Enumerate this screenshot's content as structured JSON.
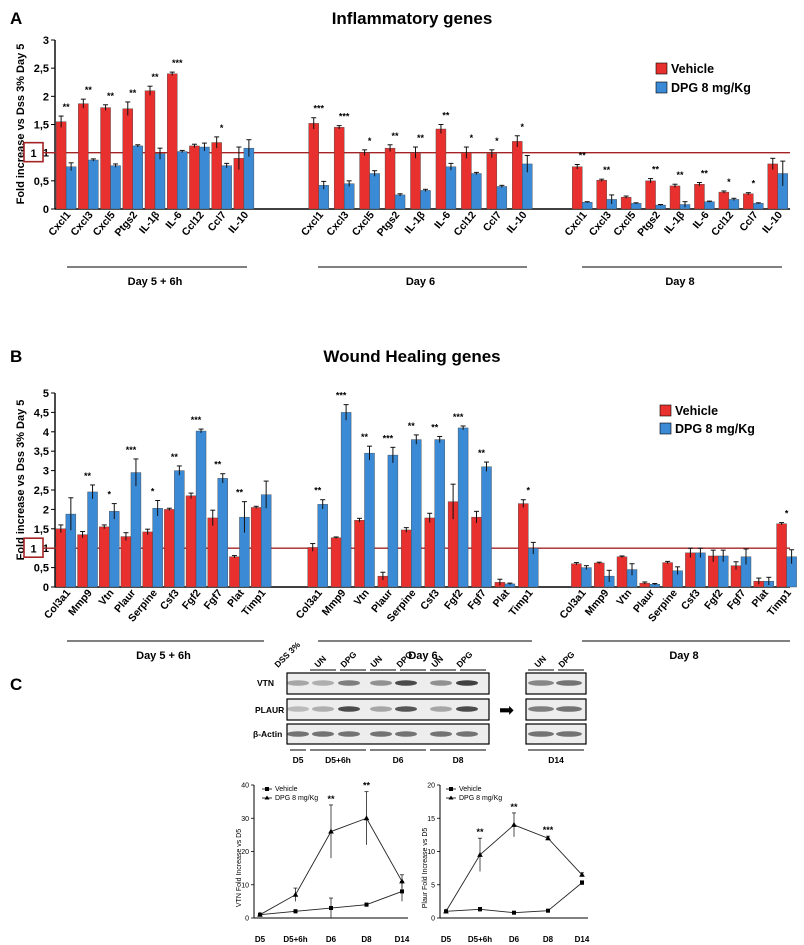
{
  "panel_labels": {
    "a": "A",
    "b": "B",
    "c": "C"
  },
  "legend": {
    "vehicle": "Vehicle",
    "dpg": "DPG 8 mg/Kg",
    "vehicle_color": "#e8302e",
    "dpg_color": "#3a8ad6"
  },
  "chart_data": [
    {
      "id": "inflammatory",
      "type": "bar",
      "title": "Inflammatory genes",
      "ylabel": "Fold increase vs Dss 3% Day 5",
      "ylim": [
        0,
        3
      ],
      "yticks": [
        "0",
        "0,5",
        "1",
        "1,5",
        "2",
        "2,5",
        "3"
      ],
      "reference_line": 1,
      "reference_label": "1",
      "groups": [
        {
          "label": "Day 5 + 6h",
          "categories": [
            "Cxcl1",
            "Cxcl3",
            "Cxcl5",
            "Ptgs2",
            "IL-1β",
            "IL-6",
            "Ccl12",
            "Ccl7",
            "IL-10"
          ],
          "vehicle": [
            1.55,
            1.87,
            1.8,
            1.78,
            2.1,
            2.4,
            1.12,
            1.18,
            0.9
          ],
          "vehicle_err": [
            0.1,
            0.08,
            0.05,
            0.12,
            0.08,
            0.03,
            0.03,
            0.1,
            0.2
          ],
          "dpg": [
            0.75,
            0.87,
            0.77,
            1.12,
            0.98,
            1.02,
            1.1,
            0.77,
            1.08
          ],
          "dpg_err": [
            0.07,
            0.02,
            0.03,
            0.02,
            0.1,
            0.02,
            0.07,
            0.04,
            0.15
          ],
          "sig": [
            "**",
            "**",
            "**",
            "**",
            "**",
            "***",
            "",
            "*",
            ""
          ]
        },
        {
          "label": "Day 6",
          "categories": [
            "Cxcl1",
            "Cxcl3",
            "Cxcl5",
            "Ptgs2",
            "IL-1β",
            "IL-6",
            "Ccl12",
            "Ccl7",
            "IL-10"
          ],
          "vehicle": [
            1.52,
            1.45,
            1.0,
            1.08,
            1.0,
            1.42,
            1.0,
            0.98,
            1.2
          ],
          "vehicle_err": [
            0.1,
            0.03,
            0.05,
            0.06,
            0.1,
            0.08,
            0.1,
            0.07,
            0.1
          ],
          "dpg": [
            0.42,
            0.45,
            0.63,
            0.25,
            0.33,
            0.75,
            0.63,
            0.4,
            0.8
          ],
          "dpg_err": [
            0.07,
            0.05,
            0.05,
            0.02,
            0.02,
            0.06,
            0.02,
            0.02,
            0.15
          ],
          "sig": [
            "***",
            "***",
            "*",
            "**",
            "**",
            "**",
            "*",
            "*",
            "*"
          ]
        },
        {
          "label": "Day 8",
          "categories": [
            "Cxcl1",
            "Cxcl3",
            "Cxcl5",
            "Ptgs2",
            "IL-1β",
            "IL-6",
            "Ccl12",
            "Ccl7",
            "IL-10"
          ],
          "vehicle": [
            0.75,
            0.51,
            0.21,
            0.5,
            0.41,
            0.44,
            0.3,
            0.27,
            0.8
          ],
          "vehicle_err": [
            0.04,
            0.02,
            0.02,
            0.04,
            0.03,
            0.03,
            0.02,
            0.02,
            0.1
          ],
          "dpg": [
            0.12,
            0.17,
            0.1,
            0.07,
            0.08,
            0.13,
            0.17,
            0.1,
            0.63
          ],
          "dpg_err": [
            0.01,
            0.08,
            0.01,
            0.01,
            0.05,
            0.01,
            0.02,
            0.01,
            0.22
          ],
          "sig": [
            "**",
            "**",
            "",
            "**",
            "**",
            "**",
            "*",
            "*",
            ""
          ]
        }
      ]
    },
    {
      "id": "wound_healing",
      "type": "bar",
      "title": "Wound Healing genes",
      "ylabel": "Fold increase vs Dss 3% Day 5",
      "ylim": [
        0,
        5
      ],
      "yticks": [
        "0",
        "0,5",
        "1",
        "1,5",
        "2",
        "2,5",
        "3",
        "3,5",
        "4",
        "4,5",
        "5"
      ],
      "reference_line": 1,
      "reference_label": "1",
      "groups": [
        {
          "label": "Day 5 + 6h",
          "categories": [
            "Col3a1",
            "Mmp9",
            "Vtn",
            "Plaur",
            "Serpine",
            "Csf3",
            "Fgf2",
            "Fgf7",
            "Plat",
            "Timp1"
          ],
          "vehicle": [
            1.5,
            1.35,
            1.55,
            1.3,
            1.42,
            2.0,
            2.35,
            1.78,
            0.78,
            2.05
          ],
          "vehicle_err": [
            0.1,
            0.08,
            0.05,
            0.1,
            0.07,
            0.03,
            0.07,
            0.2,
            0.03,
            0.03
          ],
          "dpg": [
            1.88,
            2.45,
            1.95,
            2.95,
            2.03,
            3.0,
            4.02,
            2.8,
            1.8,
            2.38
          ],
          "dpg_err": [
            0.42,
            0.18,
            0.2,
            0.35,
            0.2,
            0.12,
            0.05,
            0.12,
            0.4,
            0.35
          ],
          "sig": [
            "",
            "**",
            "*",
            "***",
            "*",
            "**",
            "***",
            "**",
            "**",
            ""
          ]
        },
        {
          "label": "Day 6",
          "categories": [
            "Col3a1",
            "Mmp9",
            "Vtn",
            "Plaur",
            "Serpine",
            "Csf3",
            "Fgf2",
            "Fgf7",
            "Plat",
            "Timp1"
          ],
          "vehicle": [
            1.02,
            1.27,
            1.72,
            0.28,
            1.47,
            1.78,
            2.2,
            1.8,
            0.12,
            2.15
          ],
          "vehicle_err": [
            0.1,
            0.02,
            0.05,
            0.1,
            0.06,
            0.12,
            0.45,
            0.15,
            0.08,
            0.1
          ],
          "dpg": [
            2.13,
            4.5,
            3.45,
            3.4,
            3.8,
            3.8,
            4.1,
            3.1,
            0.08,
            1.0
          ],
          "dpg_err": [
            0.12,
            0.2,
            0.18,
            0.2,
            0.12,
            0.08,
            0.05,
            0.12,
            0.02,
            0.15
          ],
          "sig": [
            "**",
            "***",
            "**",
            "***",
            "**",
            "**",
            "***",
            "**",
            "",
            "*"
          ]
        },
        {
          "label": "Day 8",
          "categories": [
            "Col3a1",
            "Mmp9",
            "Vtn",
            "Plaur",
            "Serpine",
            "Csf3",
            "Fgf2",
            "Fgf7",
            "Plat",
            "Timp1"
          ],
          "vehicle": [
            0.6,
            0.62,
            0.78,
            0.1,
            0.63,
            0.88,
            0.8,
            0.55,
            0.15,
            1.63
          ],
          "vehicle_err": [
            0.03,
            0.02,
            0.02,
            0.03,
            0.03,
            0.12,
            0.15,
            0.1,
            0.08,
            0.03
          ],
          "dpg": [
            0.5,
            0.28,
            0.45,
            0.07,
            0.42,
            0.88,
            0.8,
            0.78,
            0.15,
            0.78
          ],
          "dpg_err": [
            0.05,
            0.15,
            0.15,
            0.02,
            0.1,
            0.12,
            0.15,
            0.2,
            0.1,
            0.18
          ],
          "sig": [
            "",
            "",
            "",
            "",
            "",
            "",
            "",
            "",
            "",
            "*"
          ]
        }
      ]
    },
    {
      "id": "vtn_line",
      "type": "line",
      "ylabel": "VTN Fold Increase vs D5",
      "ylim": [
        0,
        40
      ],
      "yticks": [
        "0",
        "10",
        "20",
        "30",
        "40"
      ],
      "categories": [
        "D5",
        "D5+6h",
        "D6",
        "D8",
        "D14"
      ],
      "series": [
        {
          "name": "Vehicle",
          "marker": "square",
          "values": [
            1,
            2,
            3,
            4,
            8
          ],
          "err": [
            0,
            0.5,
            3,
            0.5,
            3
          ]
        },
        {
          "name": "DPG 8 mg/Kg",
          "marker": "triangle",
          "values": [
            1,
            7,
            26,
            30,
            11
          ],
          "err": [
            0,
            2,
            8,
            8,
            2
          ]
        }
      ],
      "sig": [
        "",
        "",
        "**",
        "**",
        ""
      ]
    },
    {
      "id": "plaur_line",
      "type": "line",
      "ylabel": "Plaur Fold Increase vs D5",
      "ylim": [
        0,
        20
      ],
      "yticks": [
        "0",
        "5",
        "10",
        "15",
        "20"
      ],
      "categories": [
        "D5",
        "D5+6h",
        "D6",
        "D8",
        "D14"
      ],
      "series": [
        {
          "name": "Vehicle",
          "marker": "square",
          "values": [
            1,
            1.3,
            0.8,
            1.1,
            5.3
          ],
          "err": [
            0,
            0.3,
            0.2,
            0.2,
            0.3
          ]
        },
        {
          "name": "DPG 8 mg/Kg",
          "marker": "triangle",
          "values": [
            1,
            9.5,
            14,
            12,
            6.5
          ],
          "err": [
            0,
            2.5,
            1.8,
            0.3,
            0.3
          ]
        }
      ],
      "sig": [
        "",
        "**",
        "**",
        "***",
        ""
      ]
    }
  ],
  "blot": {
    "top_labels": [
      "DSS 3%",
      "UN",
      "DPG",
      "UN",
      "DPG",
      "UN",
      "DPG"
    ],
    "right_top_labels": [
      "UN",
      "DPG"
    ],
    "row_labels": [
      "VTN",
      "PLAUR",
      "β-Actin"
    ],
    "bottom_labels": [
      "D5",
      "D5+6h",
      "D6",
      "D8"
    ],
    "right_bottom_label": "D14",
    "arrow": "➡"
  }
}
